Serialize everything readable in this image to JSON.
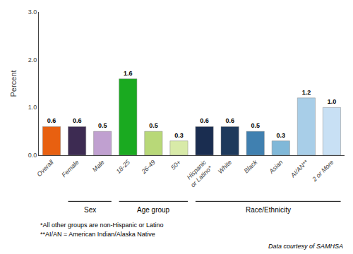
{
  "chart_data": {
    "type": "bar",
    "categories": [
      "Overall",
      "Female",
      "Male",
      "18-25",
      "26-49",
      "50+",
      "Hispanic\nor Latino*",
      "White",
      "Black",
      "Asian",
      "AI/AN**",
      "2 or More"
    ],
    "values": [
      0.6,
      0.6,
      0.5,
      1.6,
      0.5,
      0.3,
      0.6,
      0.6,
      0.5,
      0.3,
      1.2,
      1.0
    ],
    "value_labels": [
      "0.6",
      "0.6",
      "0.5",
      "1.6",
      "0.5",
      "0.3",
      "0.6",
      "0.6",
      "0.5",
      "0.3",
      "1.2",
      "1.0"
    ],
    "colors": [
      "#E86010",
      "#3D2B52",
      "#C0A0D0",
      "#1AAA20",
      "#B8D878",
      "#D8EAA8",
      "#1A2D50",
      "#1E3A5C",
      "#4080B0",
      "#80B8D8",
      "#A8CEE8",
      "#C8E0F4"
    ],
    "ylabel": "Percent",
    "ylim": [
      0,
      3.0
    ],
    "yticks": [
      {
        "value": 0,
        "label": "0.0"
      },
      {
        "value": 1,
        "label": "1.0"
      },
      {
        "value": 2,
        "label": "2.0"
      },
      {
        "value": 3,
        "label": "3.0"
      }
    ],
    "data_labels": true,
    "grid": false,
    "groups": [
      {
        "label": "Sex",
        "start": "Female",
        "end": "Male"
      },
      {
        "label": "Age group",
        "start": "18-25",
        "end": "50+"
      },
      {
        "label": "Race/Ethnicity",
        "start": "Hispanic\nor Latino*",
        "end": "2 or More"
      }
    ],
    "footnotes": [
      "*All other groups are non-Hispanic or Latino",
      "**AI/AN = American Indian/Alaska Native"
    ],
    "source": "Data courtesy of SAMHSA"
  }
}
